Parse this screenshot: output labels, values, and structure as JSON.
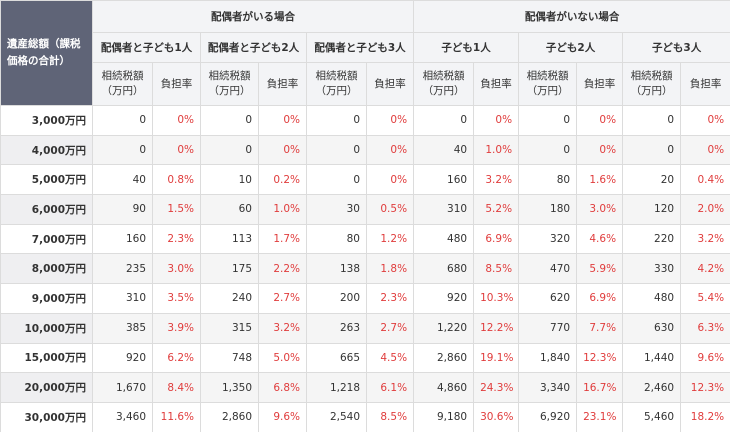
{
  "header": {
    "corner": "遺産総額（課税価格の合計）",
    "groups": [
      {
        "label": "配偶者がいる場合",
        "subgroups": [
          "配偶者と子ども1人",
          "配偶者と子ども2人",
          "配偶者と子ども3人"
        ]
      },
      {
        "label": "配偶者がいない場合",
        "subgroups": [
          "子ども1人",
          "子ども2人",
          "子ども3人"
        ]
      }
    ],
    "columns": [
      "相続税額（万円）",
      "負担率"
    ]
  },
  "table": {
    "rows": [
      [
        "3,000万円",
        "0",
        "0%",
        "0",
        "0%",
        "0",
        "0%",
        "0",
        "0%",
        "0",
        "0%",
        "0",
        "0%"
      ],
      [
        "4,000万円",
        "0",
        "0%",
        "0",
        "0%",
        "0",
        "0%",
        "40",
        "1.0%",
        "0",
        "0%",
        "0",
        "0%"
      ],
      [
        "5,000万円",
        "40",
        "0.8%",
        "10",
        "0.2%",
        "0",
        "0%",
        "160",
        "3.2%",
        "80",
        "1.6%",
        "20",
        "0.4%"
      ],
      [
        "6,000万円",
        "90",
        "1.5%",
        "60",
        "1.0%",
        "30",
        "0.5%",
        "310",
        "5.2%",
        "180",
        "3.0%",
        "120",
        "2.0%"
      ],
      [
        "7,000万円",
        "160",
        "2.3%",
        "113",
        "1.7%",
        "80",
        "1.2%",
        "480",
        "6.9%",
        "320",
        "4.6%",
        "220",
        "3.2%"
      ],
      [
        "8,000万円",
        "235",
        "3.0%",
        "175",
        "2.2%",
        "138",
        "1.8%",
        "680",
        "8.5%",
        "470",
        "5.9%",
        "330",
        "4.2%"
      ],
      [
        "9,000万円",
        "310",
        "3.5%",
        "240",
        "2.7%",
        "200",
        "2.3%",
        "920",
        "10.3%",
        "620",
        "6.9%",
        "480",
        "5.4%"
      ],
      [
        "10,000万円",
        "385",
        "3.9%",
        "315",
        "3.2%",
        "263",
        "2.7%",
        "1,220",
        "12.2%",
        "770",
        "7.7%",
        "630",
        "6.3%"
      ],
      [
        "15,000万円",
        "920",
        "6.2%",
        "748",
        "5.0%",
        "665",
        "4.5%",
        "2,860",
        "19.1%",
        "1,840",
        "12.3%",
        "1,440",
        "9.6%"
      ],
      [
        "20,000万円",
        "1,670",
        "8.4%",
        "1,350",
        "6.8%",
        "1,218",
        "6.1%",
        "4,860",
        "24.3%",
        "3,340",
        "16.7%",
        "2,460",
        "12.3%"
      ],
      [
        "30,000万円",
        "3,460",
        "11.6%",
        "2,860",
        "9.6%",
        "2,540",
        "8.5%",
        "9,180",
        "30.6%",
        "6,920",
        "23.1%",
        "5,460",
        "18.2%"
      ]
    ]
  }
}
